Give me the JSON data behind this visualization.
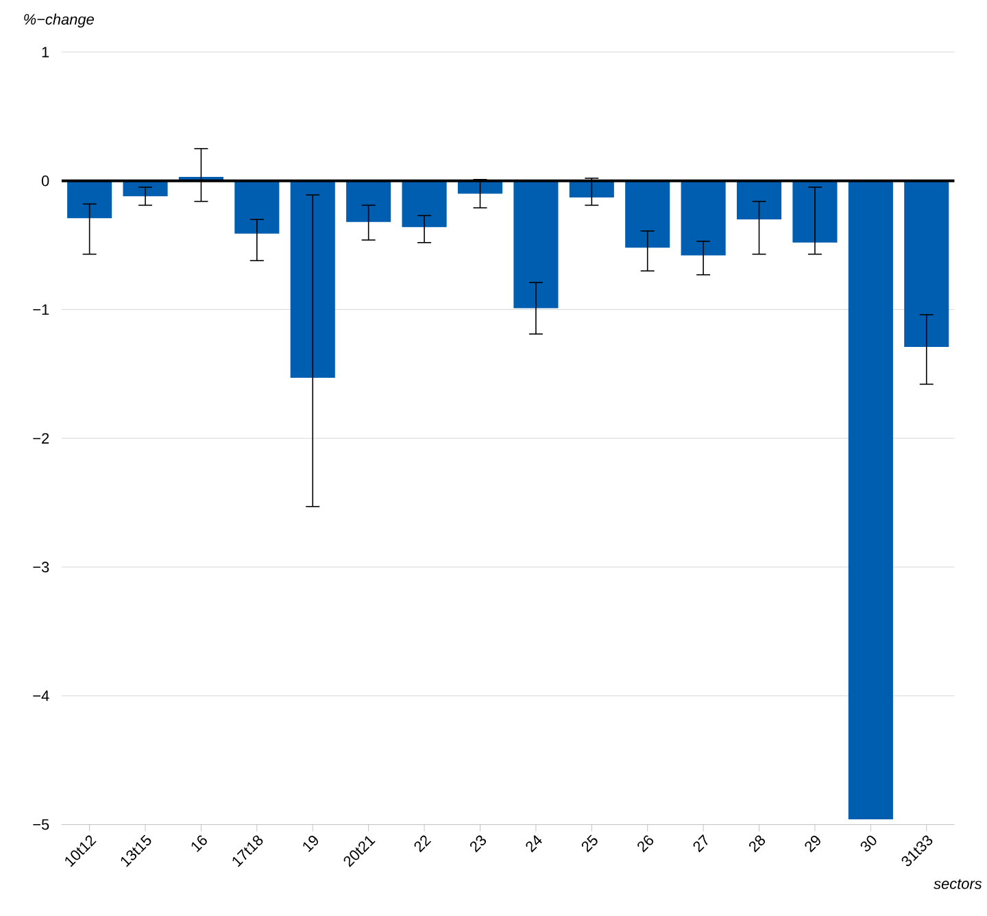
{
  "chart_data": {
    "type": "bar",
    "xlabel": "sectors",
    "ylabel": "%−change",
    "categories": [
      "10t12",
      "13t15",
      "16",
      "17t18",
      "19",
      "20t21",
      "22",
      "23",
      "24",
      "25",
      "26",
      "27",
      "28",
      "29",
      "30",
      "31t33"
    ],
    "values": [
      -0.29,
      -0.12,
      0.03,
      -0.41,
      -1.53,
      -0.32,
      -0.36,
      -0.1,
      -0.99,
      -0.13,
      -0.52,
      -0.58,
      -0.3,
      -0.48,
      -4.96,
      -1.29
    ],
    "errors": [
      [
        -0.57,
        -0.18
      ],
      [
        -0.19,
        -0.05
      ],
      [
        -0.16,
        0.25
      ],
      [
        -0.62,
        -0.3
      ],
      [
        -2.53,
        -0.11
      ],
      [
        -0.46,
        -0.19
      ],
      [
        -0.48,
        -0.27
      ],
      [
        -0.21,
        0.01
      ],
      [
        -1.19,
        -0.79
      ],
      [
        -0.19,
        0.02
      ],
      [
        -0.7,
        -0.39
      ],
      [
        -0.73,
        -0.47
      ],
      [
        -0.57,
        -0.16
      ],
      [
        -0.57,
        -0.05
      ],
      null,
      [
        -1.58,
        -1.04
      ]
    ],
    "color": "#005eb0",
    "ylim": [
      -5,
      1
    ],
    "yticks": [
      {
        "value": -5,
        "label": "−5"
      },
      {
        "value": -4,
        "label": "−4"
      },
      {
        "value": -3,
        "label": "−3"
      },
      {
        "value": -2,
        "label": "−2"
      },
      {
        "value": -1,
        "label": "−1"
      },
      0,
      1
    ],
    "grid": "y",
    "ref_lines": [
      {
        "axis": "y",
        "value": 0,
        "color": "#000000"
      }
    ]
  }
}
